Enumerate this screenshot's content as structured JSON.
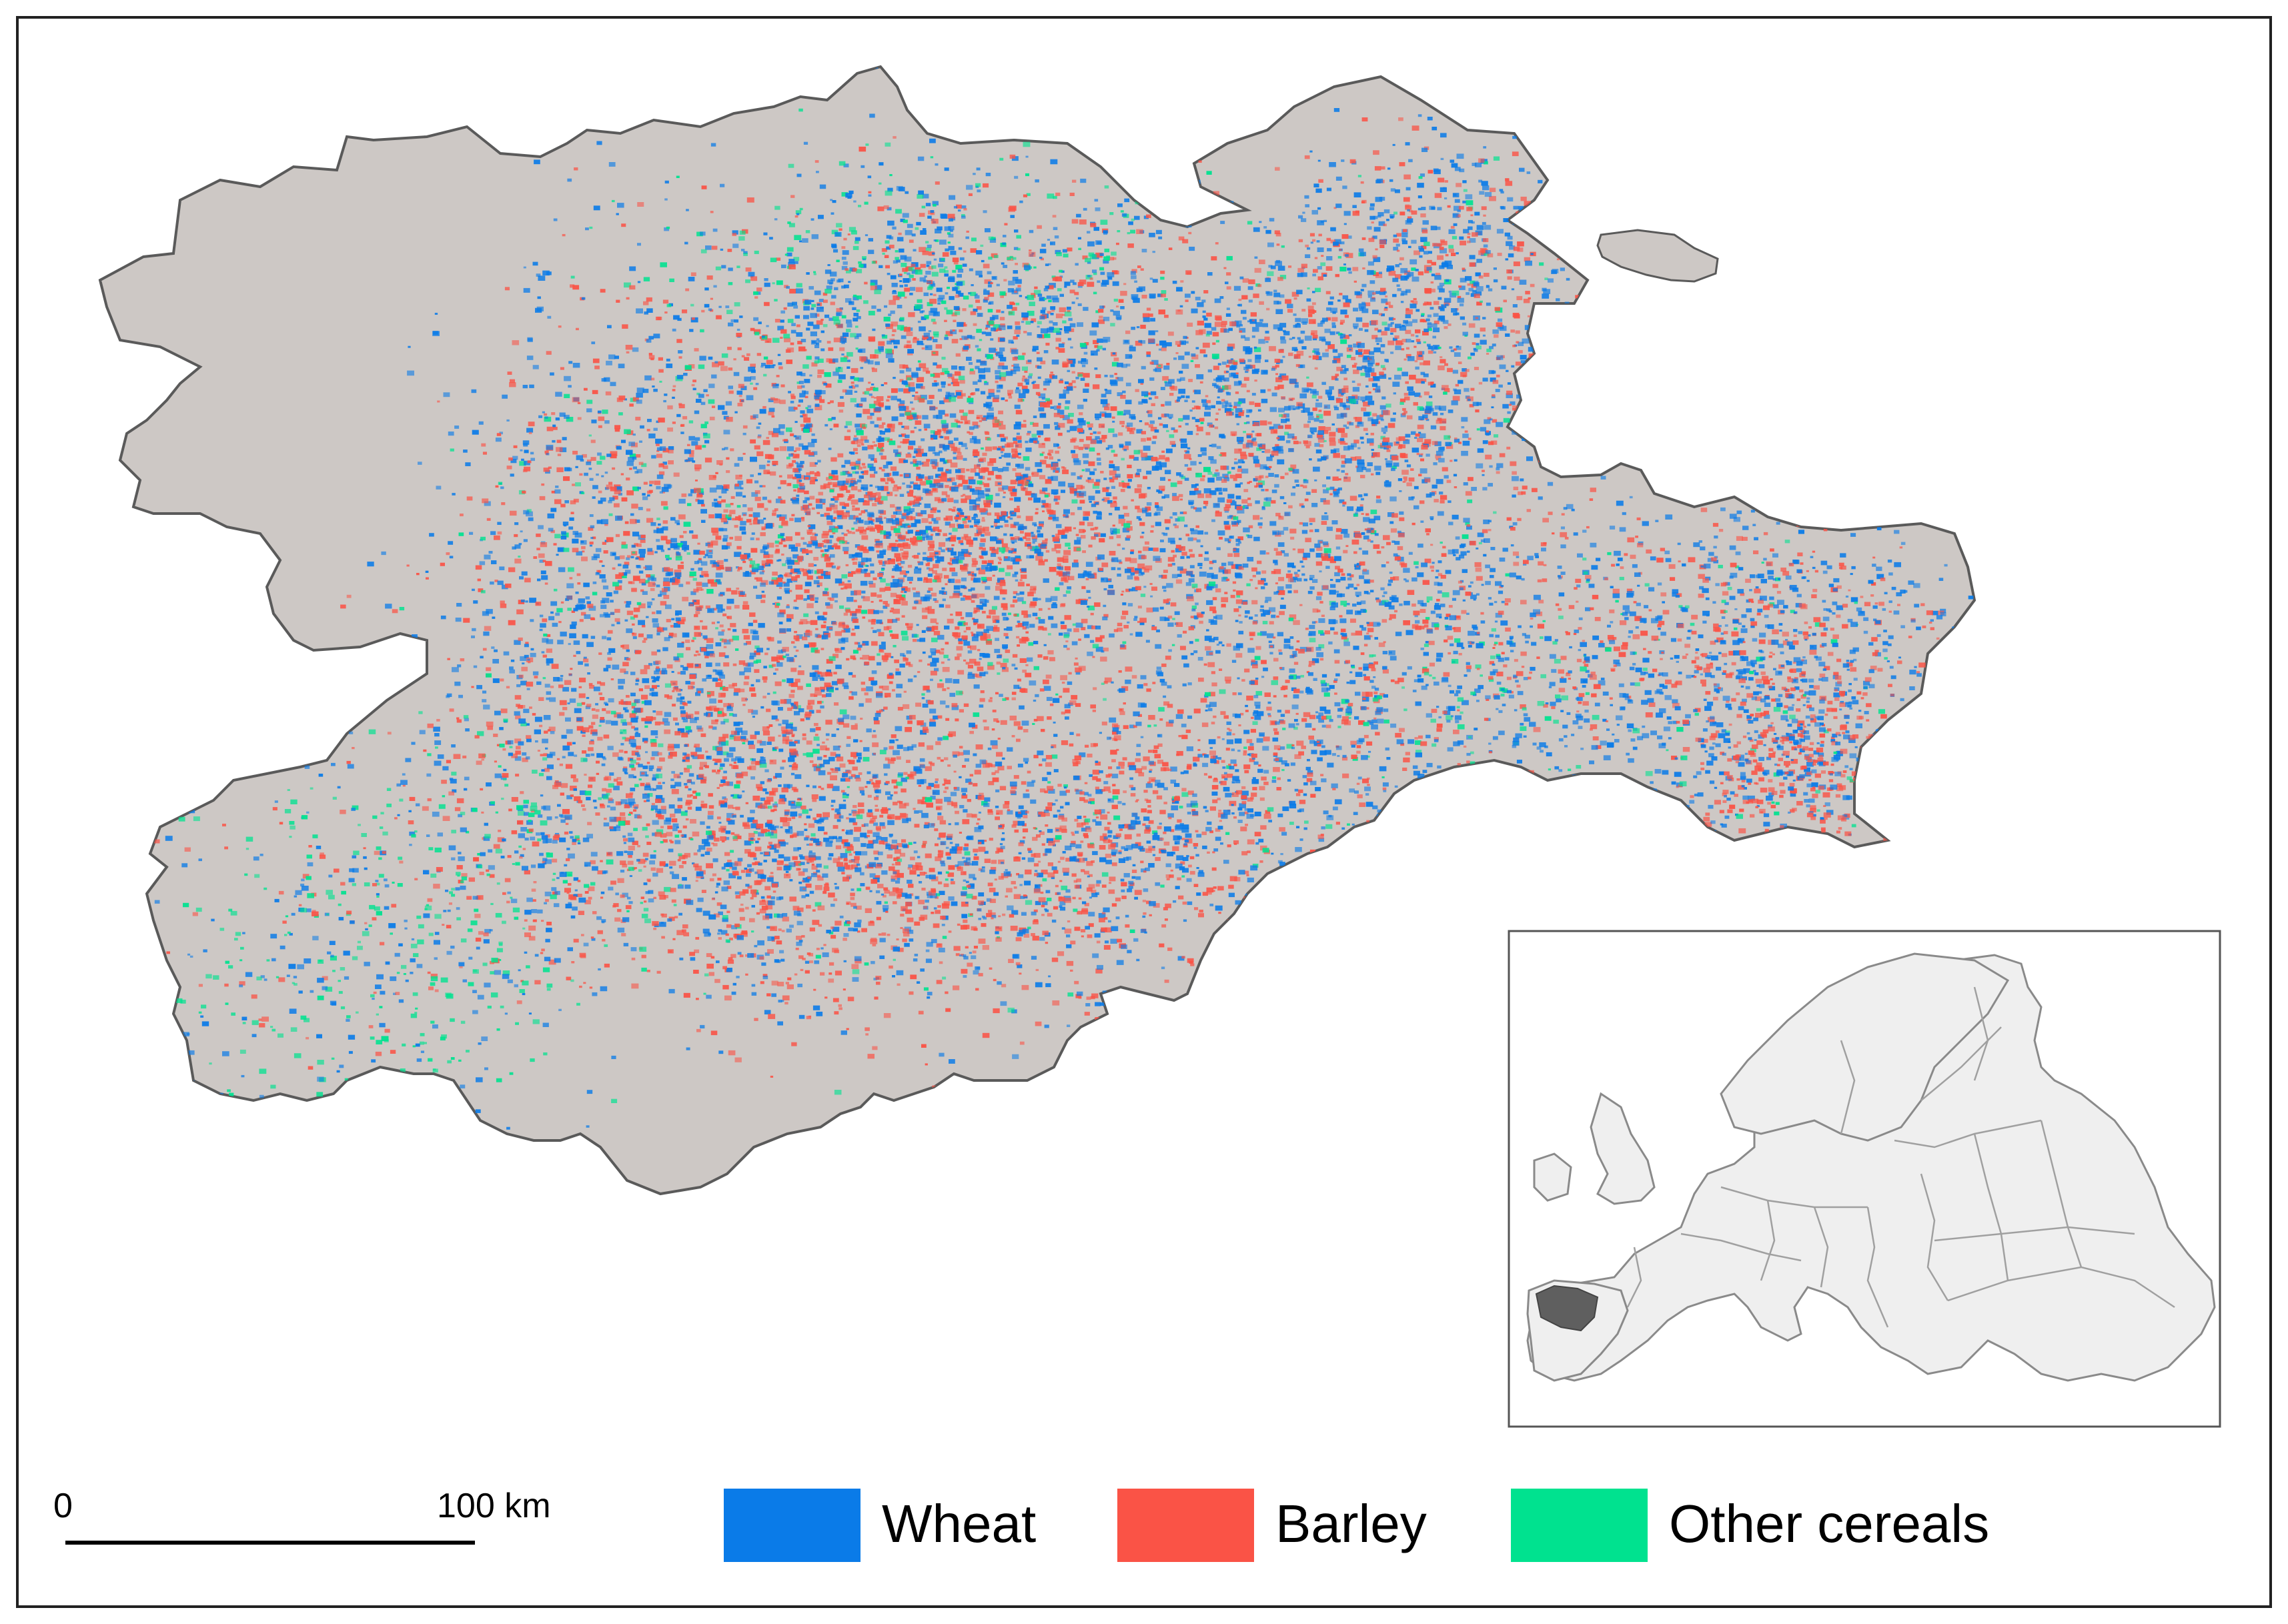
{
  "legend": {
    "items": [
      {
        "label": "Wheat",
        "color": "#0a7be8"
      },
      {
        "label": "Barley",
        "color": "#fa5346"
      },
      {
        "label": "Other cereals",
        "color": "#00e28f"
      }
    ]
  },
  "scale_bar": {
    "start_label": "0",
    "end_label": "100 km"
  },
  "colors": {
    "region_fill": "#cdc8c5",
    "region_stroke": "#5a5a5a",
    "frame": "#222222",
    "europe_fill": "#efefef",
    "highlight_region": "#5f5f5f"
  }
}
